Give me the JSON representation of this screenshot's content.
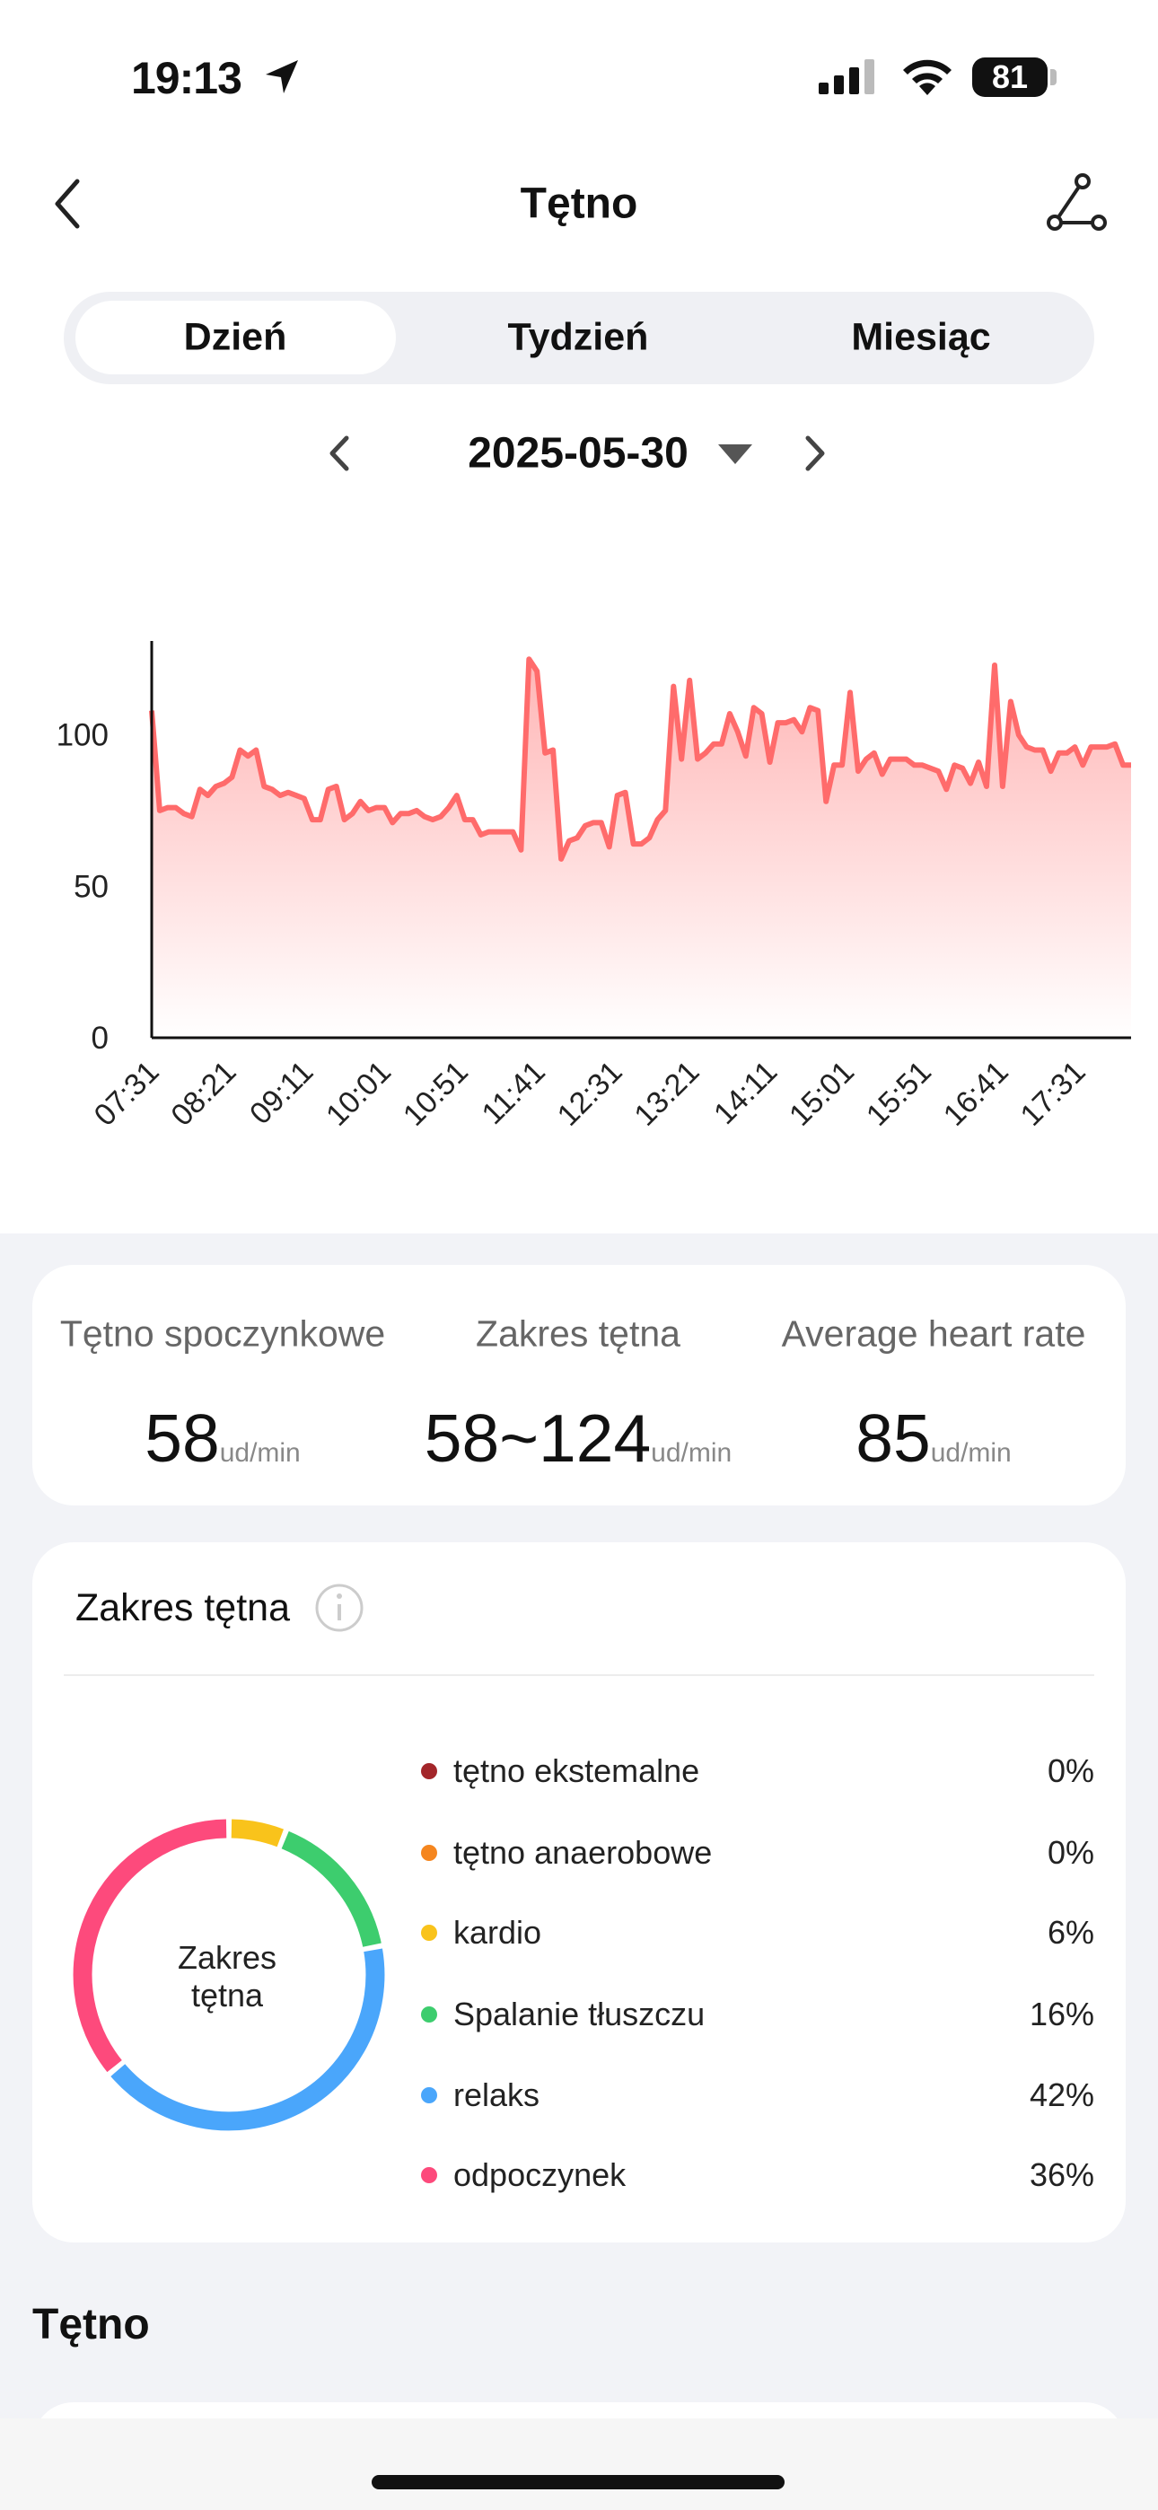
{
  "status_bar": {
    "time": "19:13",
    "battery": "81"
  },
  "header": {
    "title": "Tętno"
  },
  "tabs": [
    "Dzień",
    "Tydzień",
    "Miesiąc"
  ],
  "date": "2025-05-30",
  "chart_data": [
    {
      "type": "line",
      "color": "#ff6b6b",
      "values": [
        108,
        75,
        76,
        76,
        74,
        73,
        82,
        80,
        83,
        84,
        86,
        95,
        93,
        95,
        83,
        82,
        80,
        81,
        80,
        79,
        72,
        72,
        82,
        83,
        72,
        74,
        78,
        75,
        76,
        76,
        71,
        74,
        74,
        75,
        73,
        72,
        73,
        76,
        80,
        72,
        72,
        67,
        68,
        68,
        68,
        68,
        62,
        125,
        121,
        94,
        95,
        59,
        65,
        66,
        70,
        71,
        71,
        63,
        80,
        81,
        64,
        64,
        66,
        72,
        75,
        116,
        92,
        118,
        92,
        94,
        97,
        97,
        107,
        101,
        93,
        109,
        107,
        91,
        104,
        104,
        105,
        101,
        109,
        108,
        78,
        90,
        90,
        114,
        88,
        92,
        94,
        87,
        92,
        92,
        92,
        90,
        90,
        89,
        88,
        82,
        90,
        89,
        84,
        91,
        83,
        123,
        83,
        111,
        100,
        96,
        95,
        95,
        88,
        94,
        94,
        96,
        90,
        96,
        96,
        96,
        97,
        90,
        90
      ],
      "xlim": [
        0,
        122
      ],
      "xticks": [
        {
          "value": 0,
          "label": "07:31"
        },
        {
          "value": 9.6,
          "label": "08:21"
        },
        {
          "value": 19.2,
          "label": "09:11"
        },
        {
          "value": 28.9,
          "label": "10:01"
        },
        {
          "value": 38.5,
          "label": "10:51"
        },
        {
          "value": 48.1,
          "label": "11:41"
        },
        {
          "value": 57.7,
          "label": "12:31"
        },
        {
          "value": 67.3,
          "label": "13:21"
        },
        {
          "value": 77,
          "label": "14:11"
        },
        {
          "value": 86.6,
          "label": "15:01"
        },
        {
          "value": 96.2,
          "label": "15:51"
        },
        {
          "value": 105.8,
          "label": "16:41"
        },
        {
          "value": 115.4,
          "label": "17:31"
        }
      ],
      "ylim": [
        0,
        131
      ],
      "yticks": [
        0,
        50,
        100
      ]
    },
    {
      "type": "pie",
      "title": "Zakres tętna",
      "center_label": "Zakres tętna",
      "categories": [
        "tętno ekstemalne",
        "tętno anaerobowe",
        "kardio",
        "Spalanie tłuszczu",
        "relaks",
        "odpoczynek"
      ],
      "values": [
        0,
        0,
        6,
        16,
        42,
        36
      ],
      "value_labels": [
        "0%",
        "0%",
        "6%",
        "16%",
        "42%",
        "36%"
      ],
      "colors": [
        "#a3262a",
        "#f5861f",
        "#f9c31b",
        "#3dcd6e",
        "#4aa6fb",
        "#fd4a7c"
      ]
    }
  ],
  "stats": [
    {
      "label": "Tętno spoczynkowe",
      "value": "58",
      "unit": "ud/min"
    },
    {
      "label": "Zakres tętna",
      "value": "58~124",
      "unit": "ud/min"
    },
    {
      "label": "Average heart rate",
      "value": "85",
      "unit": "ud/min"
    }
  ],
  "section_title": "Tętno"
}
